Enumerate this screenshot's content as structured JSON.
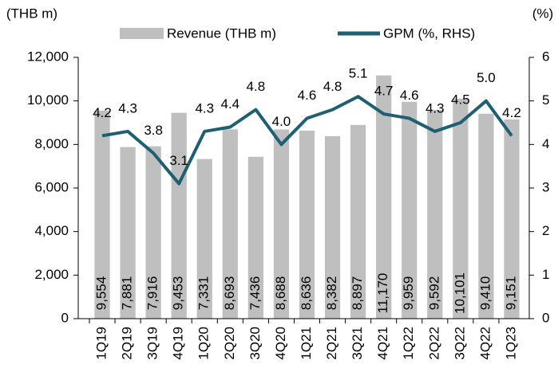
{
  "chart_data": {
    "type": "bar-line",
    "ylabel": "(THB m)",
    "y2label": "(%)",
    "categories": [
      "1Q19",
      "2Q19",
      "3Q19",
      "4Q19",
      "1Q20",
      "2Q20",
      "3Q20",
      "4Q20",
      "1Q21",
      "2Q21",
      "3Q21",
      "4Q21",
      "1Q22",
      "2Q22",
      "3Q22",
      "4Q22",
      "1Q23"
    ],
    "series": [
      {
        "name": "Revenue (THB m)",
        "color": "#bfbfbf",
        "type": "bar",
        "values": [
          9554,
          7881,
          7916,
          9453,
          7331,
          8693,
          7436,
          8688,
          8636,
          8382,
          8897,
          11170,
          9959,
          9592,
          10101,
          9410,
          9151
        ],
        "value_labels": [
          "9,554",
          "7,881",
          "7,916",
          "9,453",
          "7,331",
          "8,693",
          "7,436",
          "8,688",
          "8,636",
          "8,382",
          "8,897",
          "11,170",
          "9,959",
          "9,592",
          "10,101",
          "9,410",
          "9,151"
        ]
      },
      {
        "name": "GPM (%, RHS)",
        "color": "#1f5f74",
        "type": "line",
        "axis": "y2",
        "values": [
          4.2,
          4.3,
          3.8,
          3.1,
          4.3,
          4.4,
          4.8,
          4.0,
          4.6,
          4.8,
          5.1,
          4.7,
          4.6,
          4.3,
          4.5,
          5.0,
          4.2
        ],
        "value_labels": [
          "4.2",
          "4.3",
          "3.8",
          "3.1",
          "4.3",
          "4.4",
          "4.8",
          "4.0",
          "4.6",
          "4.8",
          "5.1",
          "4.7",
          "4.6",
          "4.3",
          "4.5",
          "5.0",
          "4.2"
        ]
      }
    ],
    "ylim": [
      0,
      12000
    ],
    "yticks": [
      0,
      {
        "value": 2000,
        "label": "2,000"
      },
      {
        "value": 4000,
        "label": "4,000"
      },
      {
        "value": 6000,
        "label": "6,000"
      },
      {
        "value": 8000,
        "label": "8,000"
      },
      {
        "value": 10000,
        "label": "10,000"
      },
      {
        "value": 12000,
        "label": "12,000"
      }
    ],
    "y2lim": [
      0,
      6
    ],
    "y2ticks": [
      0,
      1,
      2,
      3,
      4,
      5,
      6
    ]
  }
}
